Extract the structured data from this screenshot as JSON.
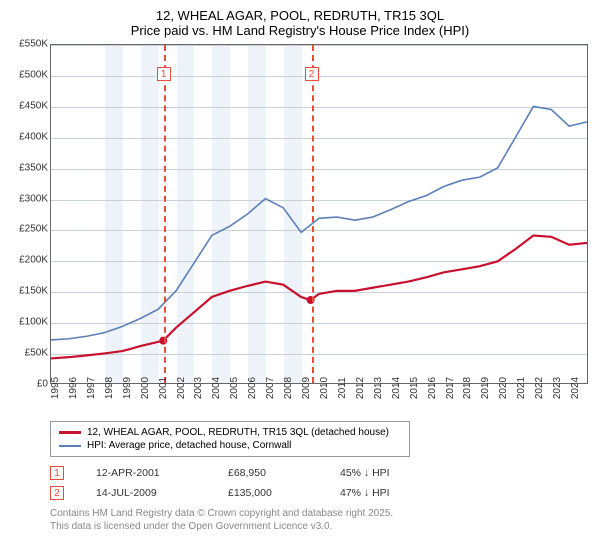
{
  "title_line1": "12, WHEAL AGAR, POOL, REDRUTH, TR15 3QL",
  "title_line2": "Price paid vs. HM Land Registry's House Price Index (HPI)",
  "chart": {
    "type": "line",
    "background_color": "#ffffff",
    "shade_color": "#eef3f9",
    "grid_color": "#c9d0d6",
    "border_color": "#666666",
    "ylim": [
      0,
      550000
    ],
    "ytick_step": 50000,
    "yticks": [
      "£0",
      "£50K",
      "£100K",
      "£150K",
      "£200K",
      "£250K",
      "£300K",
      "£350K",
      "£400K",
      "£450K",
      "£500K",
      "£550K"
    ],
    "xlim": [
      1995,
      2025
    ],
    "xticks": [
      1995,
      1996,
      1997,
      1998,
      1999,
      2000,
      2001,
      2002,
      2003,
      2004,
      2005,
      2006,
      2007,
      2008,
      2009,
      2010,
      2011,
      2012,
      2013,
      2014,
      2015,
      2016,
      2017,
      2018,
      2019,
      2020,
      2021,
      2022,
      2023,
      2024
    ],
    "shade_bands": [
      [
        1998,
        1999
      ],
      [
        2000,
        2001
      ],
      [
        2002,
        2003
      ],
      [
        2004,
        2005
      ],
      [
        2006,
        2007
      ],
      [
        2008,
        2009
      ]
    ],
    "markers": [
      {
        "id": "1",
        "x": 2001.28
      },
      {
        "id": "2",
        "x": 2009.53
      }
    ],
    "series": [
      {
        "name": "price_paid",
        "color": "#c8102e",
        "width": 2.2,
        "points": [
          [
            1995,
            40000
          ],
          [
            1996,
            42000
          ],
          [
            1997,
            45000
          ],
          [
            1998,
            48000
          ],
          [
            1999,
            52000
          ],
          [
            2000,
            60000
          ],
          [
            2001.28,
            68950
          ],
          [
            2002,
            90000
          ],
          [
            2003,
            115000
          ],
          [
            2004,
            140000
          ],
          [
            2005,
            150000
          ],
          [
            2006,
            158000
          ],
          [
            2007,
            165000
          ],
          [
            2008,
            160000
          ],
          [
            2009,
            140000
          ],
          [
            2009.53,
            135000
          ],
          [
            2010,
            145000
          ],
          [
            2011,
            150000
          ],
          [
            2012,
            150000
          ],
          [
            2013,
            155000
          ],
          [
            2014,
            160000
          ],
          [
            2015,
            165000
          ],
          [
            2016,
            172000
          ],
          [
            2017,
            180000
          ],
          [
            2018,
            185000
          ],
          [
            2019,
            190000
          ],
          [
            2020,
            198000
          ],
          [
            2021,
            218000
          ],
          [
            2022,
            240000
          ],
          [
            2023,
            238000
          ],
          [
            2024,
            225000
          ],
          [
            2025,
            228000
          ]
        ],
        "dots": [
          [
            2001.28,
            68950
          ],
          [
            2009.53,
            135000
          ]
        ]
      },
      {
        "name": "hpi",
        "color": "#5b7fb9",
        "width": 1.6,
        "points": [
          [
            1995,
            70000
          ],
          [
            1996,
            72000
          ],
          [
            1997,
            76000
          ],
          [
            1998,
            82000
          ],
          [
            1999,
            92000
          ],
          [
            2000,
            105000
          ],
          [
            2001,
            120000
          ],
          [
            2002,
            150000
          ],
          [
            2003,
            195000
          ],
          [
            2004,
            240000
          ],
          [
            2005,
            255000
          ],
          [
            2006,
            275000
          ],
          [
            2007,
            300000
          ],
          [
            2008,
            285000
          ],
          [
            2009,
            245000
          ],
          [
            2010,
            268000
          ],
          [
            2011,
            270000
          ],
          [
            2012,
            265000
          ],
          [
            2013,
            270000
          ],
          [
            2014,
            282000
          ],
          [
            2015,
            295000
          ],
          [
            2016,
            305000
          ],
          [
            2017,
            320000
          ],
          [
            2018,
            330000
          ],
          [
            2019,
            335000
          ],
          [
            2020,
            350000
          ],
          [
            2021,
            400000
          ],
          [
            2022,
            450000
          ],
          [
            2023,
            445000
          ],
          [
            2024,
            418000
          ],
          [
            2025,
            425000
          ]
        ]
      }
    ]
  },
  "legend": {
    "items": [
      {
        "color": "#c8102e",
        "label": "12, WHEAL AGAR, POOL, REDRUTH, TR15 3QL (detached house)",
        "width": 3
      },
      {
        "color": "#5b7fb9",
        "label": "HPI: Average price, detached house, Cornwall",
        "width": 2
      }
    ]
  },
  "transactions": [
    {
      "id": "1",
      "date": "12-APR-2001",
      "price": "£68,950",
      "delta": "45% ↓ HPI"
    },
    {
      "id": "2",
      "date": "14-JUL-2009",
      "price": "£135,000",
      "delta": "47% ↓ HPI"
    }
  ],
  "footer_line1": "Contains HM Land Registry data © Crown copyright and database right 2025.",
  "footer_line2": "This data is licensed under the Open Government Licence v3.0."
}
